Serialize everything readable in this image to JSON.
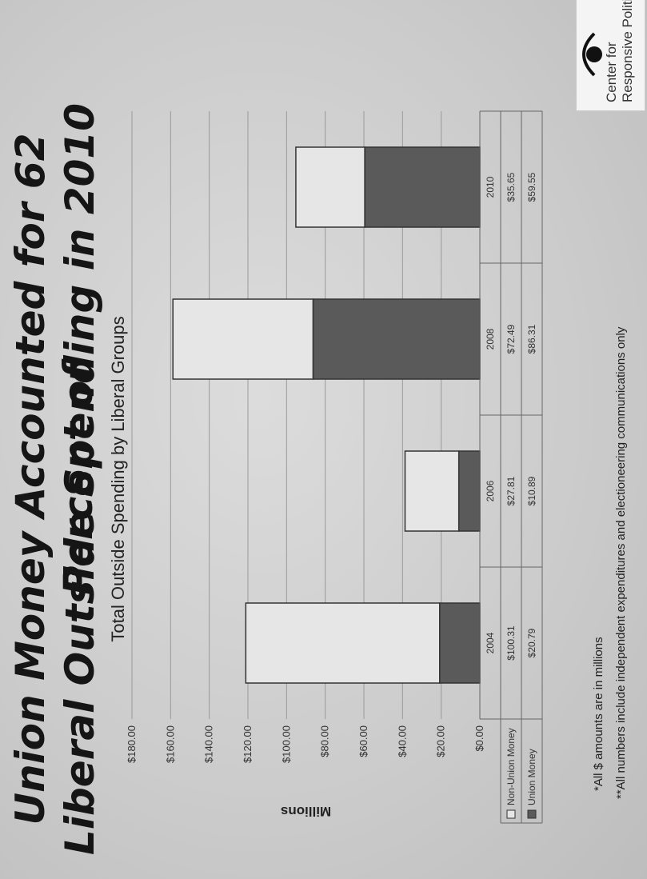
{
  "title_line1": "Union Money Accounted for 62 Percent of",
  "title_line2": "Liberal Outside Spending in 2010",
  "chart_data": {
    "type": "bar",
    "stacked": true,
    "title": "Total Outside Spending by Liberal Groups",
    "ylabel": "Millions",
    "ylim": [
      0,
      180
    ],
    "yticks": [
      "$0.00",
      "$20.00",
      "$40.00",
      "$60.00",
      "$80.00",
      "$100.00",
      "$120.00",
      "$140.00",
      "$160.00",
      "$180.00"
    ],
    "categories": [
      "2004",
      "2006",
      "2008",
      "2010"
    ],
    "series": [
      {
        "name": "Union Money",
        "values": [
          20.79,
          10.89,
          86.31,
          59.55
        ],
        "labels": [
          "$20.79",
          "$10.89",
          "$86.31",
          "$59.55"
        ],
        "color": "#5a5a5a"
      },
      {
        "name": "Non-Union Money",
        "values": [
          100.31,
          27.81,
          72.49,
          35.65
        ],
        "labels": [
          "$100.31",
          "$27.81",
          "$72.49",
          "$35.65"
        ],
        "color": "#e6e6e6"
      }
    ],
    "legend": "table-below",
    "grid": true
  },
  "notes": {
    "note1": "*All $ amounts are in millions",
    "note2": "**All numbers include independent expenditures and electioneering communications only"
  },
  "logo": {
    "line1": "Center for",
    "line2": "Responsive Politics"
  }
}
